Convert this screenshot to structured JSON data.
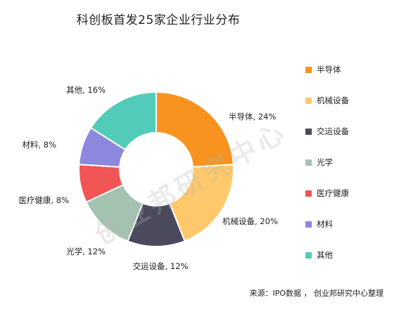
{
  "chart_data": {
    "type": "pie",
    "title": "科创板首发25家企业行业分布",
    "donut": true,
    "categories": [
      "半导体",
      "机械设备",
      "交运设备",
      "光学",
      "医疗健康",
      "材料",
      "其他"
    ],
    "values": [
      24,
      20,
      12,
      12,
      8,
      8,
      16
    ],
    "unit": "%",
    "data_labels": [
      "半导体, 24%",
      "机械设备, 20%",
      "交运设备, 12%",
      "光学, 12%",
      "医疗健康, 8%",
      "材料, 8%",
      "其他, 16%"
    ],
    "colors": [
      "#f7931e",
      "#ffc96b",
      "#4b4a5c",
      "#a3c2b0",
      "#f25555",
      "#8b88dd",
      "#52ccb8"
    ],
    "legend_position": "right"
  },
  "watermark": "创业邦研究中心",
  "source": "来源：IPO数据 ， 创业邦研究中心整理"
}
